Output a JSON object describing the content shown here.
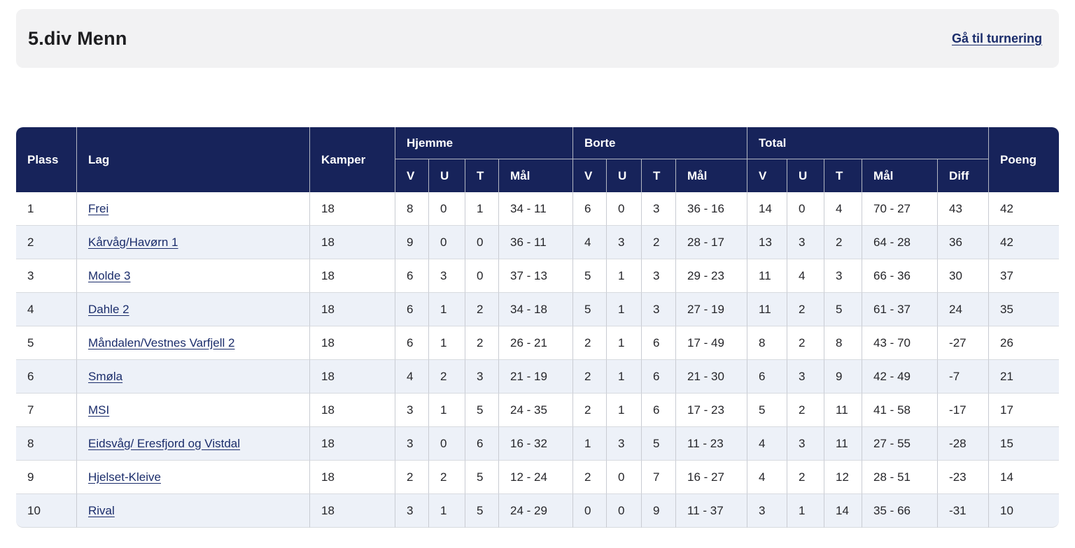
{
  "page": {
    "title": "5.div Menn",
    "tournament_link": "Gå til turnering"
  },
  "colors": {
    "header_bg": "#17235A",
    "alt_row_bg": "#EDF1F8",
    "link": "#1B2D6B",
    "topbar_bg": "#F2F2F3"
  },
  "table": {
    "headers": {
      "plass": "Plass",
      "lag": "Lag",
      "kamper": "Kamper",
      "hjemme": "Hjemme",
      "borte": "Borte",
      "total": "Total",
      "poeng": "Poeng",
      "v": "V",
      "u": "U",
      "t": "T",
      "maal": "Mål",
      "diff": "Diff"
    },
    "rows": [
      {
        "plass": "1",
        "lag": "Frei",
        "kamper": "18",
        "hjemme": {
          "v": "8",
          "u": "0",
          "t": "1",
          "maal": "34 - 11"
        },
        "borte": {
          "v": "6",
          "u": "0",
          "t": "3",
          "maal": "36 - 16"
        },
        "total": {
          "v": "14",
          "u": "0",
          "t": "4",
          "maal": "70 - 27",
          "diff": "43"
        },
        "poeng": "42"
      },
      {
        "plass": "2",
        "lag": "Kårvåg/Havørn 1",
        "kamper": "18",
        "hjemme": {
          "v": "9",
          "u": "0",
          "t": "0",
          "maal": "36 - 11"
        },
        "borte": {
          "v": "4",
          "u": "3",
          "t": "2",
          "maal": "28 - 17"
        },
        "total": {
          "v": "13",
          "u": "3",
          "t": "2",
          "maal": "64 - 28",
          "diff": "36"
        },
        "poeng": "42"
      },
      {
        "plass": "3",
        "lag": "Molde 3",
        "kamper": "18",
        "hjemme": {
          "v": "6",
          "u": "3",
          "t": "0",
          "maal": "37 - 13"
        },
        "borte": {
          "v": "5",
          "u": "1",
          "t": "3",
          "maal": "29 - 23"
        },
        "total": {
          "v": "11",
          "u": "4",
          "t": "3",
          "maal": "66 - 36",
          "diff": "30"
        },
        "poeng": "37"
      },
      {
        "plass": "4",
        "lag": "Dahle 2",
        "kamper": "18",
        "hjemme": {
          "v": "6",
          "u": "1",
          "t": "2",
          "maal": "34 - 18"
        },
        "borte": {
          "v": "5",
          "u": "1",
          "t": "3",
          "maal": "27 - 19"
        },
        "total": {
          "v": "11",
          "u": "2",
          "t": "5",
          "maal": "61 - 37",
          "diff": "24"
        },
        "poeng": "35"
      },
      {
        "plass": "5",
        "lag": "Måndalen/Vestnes Varfjell 2",
        "kamper": "18",
        "hjemme": {
          "v": "6",
          "u": "1",
          "t": "2",
          "maal": "26 - 21"
        },
        "borte": {
          "v": "2",
          "u": "1",
          "t": "6",
          "maal": "17 - 49"
        },
        "total": {
          "v": "8",
          "u": "2",
          "t": "8",
          "maal": "43 - 70",
          "diff": "-27"
        },
        "poeng": "26"
      },
      {
        "plass": "6",
        "lag": "Smøla",
        "kamper": "18",
        "hjemme": {
          "v": "4",
          "u": "2",
          "t": "3",
          "maal": "21 - 19"
        },
        "borte": {
          "v": "2",
          "u": "1",
          "t": "6",
          "maal": "21 - 30"
        },
        "total": {
          "v": "6",
          "u": "3",
          "t": "9",
          "maal": "42 - 49",
          "diff": "-7"
        },
        "poeng": "21"
      },
      {
        "plass": "7",
        "lag": "MSI",
        "kamper": "18",
        "hjemme": {
          "v": "3",
          "u": "1",
          "t": "5",
          "maal": "24 - 35"
        },
        "borte": {
          "v": "2",
          "u": "1",
          "t": "6",
          "maal": "17 - 23"
        },
        "total": {
          "v": "5",
          "u": "2",
          "t": "11",
          "maal": "41 - 58",
          "diff": "-17"
        },
        "poeng": "17"
      },
      {
        "plass": "8",
        "lag": "Eidsvåg/ Eresfjord og Vistdal",
        "kamper": "18",
        "hjemme": {
          "v": "3",
          "u": "0",
          "t": "6",
          "maal": "16 - 32"
        },
        "borte": {
          "v": "1",
          "u": "3",
          "t": "5",
          "maal": "11 - 23"
        },
        "total": {
          "v": "4",
          "u": "3",
          "t": "11",
          "maal": "27 - 55",
          "diff": "-28"
        },
        "poeng": "15"
      },
      {
        "plass": "9",
        "lag": "Hjelset-Kleive",
        "kamper": "18",
        "hjemme": {
          "v": "2",
          "u": "2",
          "t": "5",
          "maal": "12 - 24"
        },
        "borte": {
          "v": "2",
          "u": "0",
          "t": "7",
          "maal": "16 - 27"
        },
        "total": {
          "v": "4",
          "u": "2",
          "t": "12",
          "maal": "28 - 51",
          "diff": "-23"
        },
        "poeng": "14"
      },
      {
        "plass": "10",
        "lag": "Rival",
        "kamper": "18",
        "hjemme": {
          "v": "3",
          "u": "1",
          "t": "5",
          "maal": "24 - 29"
        },
        "borte": {
          "v": "0",
          "u": "0",
          "t": "9",
          "maal": "11 - 37"
        },
        "total": {
          "v": "3",
          "u": "1",
          "t": "14",
          "maal": "35 - 66",
          "diff": "-31"
        },
        "poeng": "10"
      }
    ]
  }
}
